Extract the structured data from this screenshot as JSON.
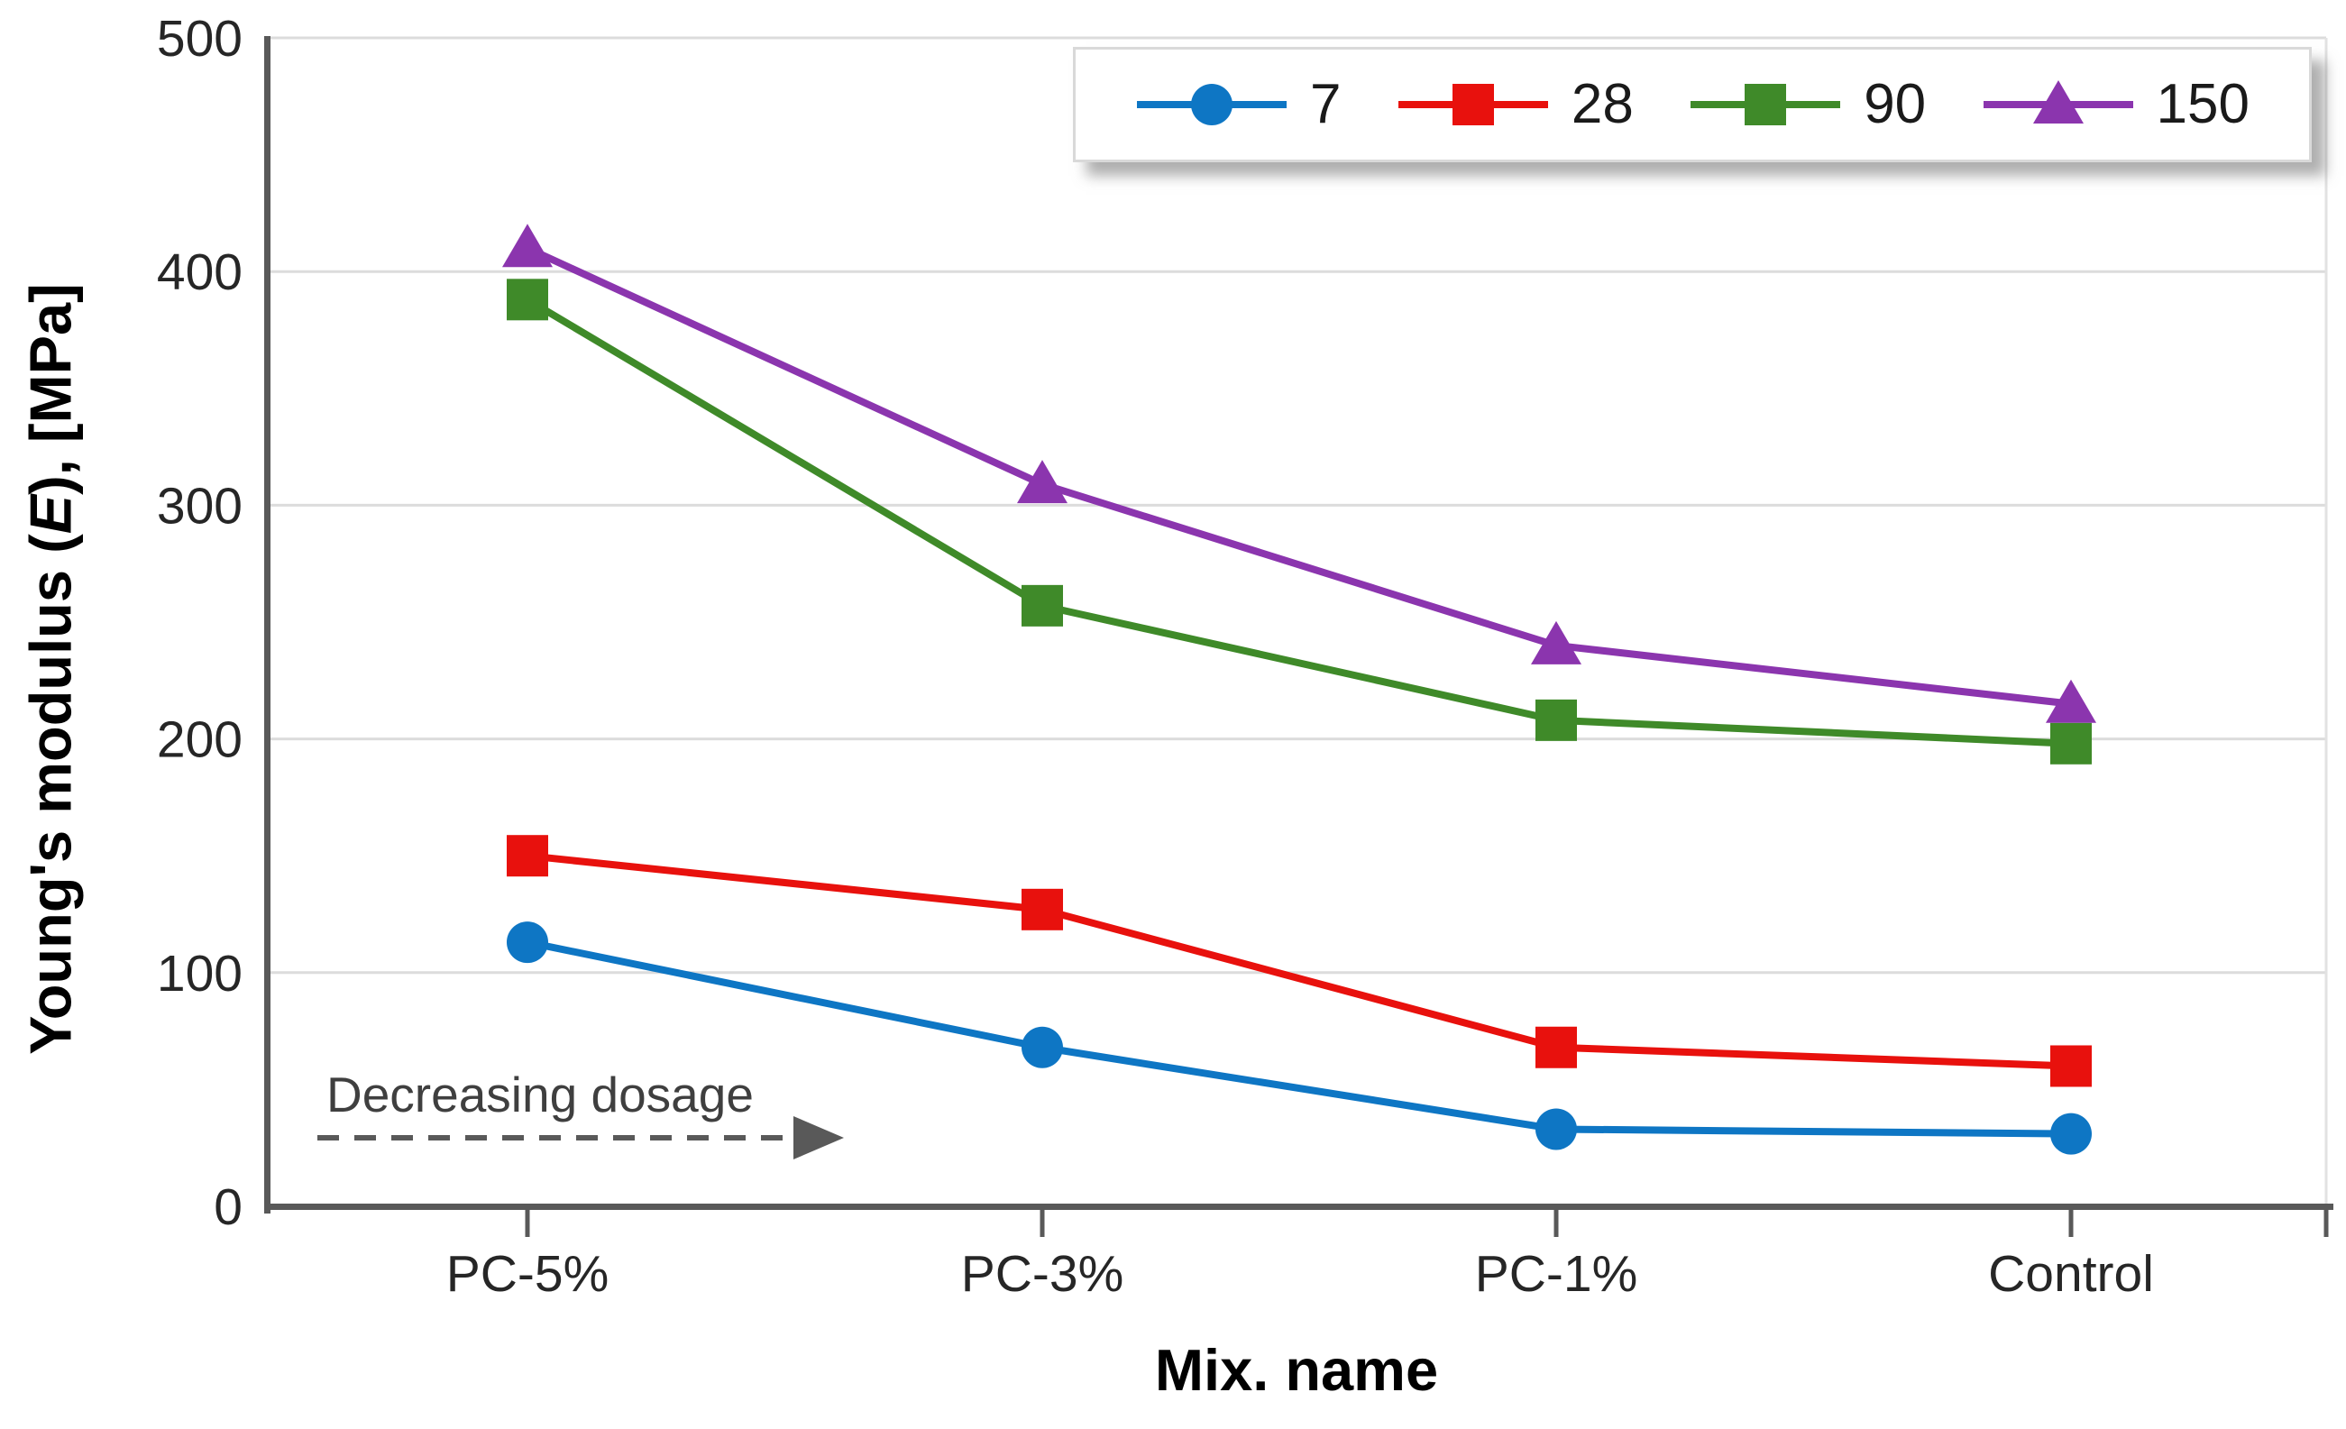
{
  "chart_data": {
    "type": "line",
    "title": "",
    "xlabel": "Mix. name",
    "ylabel": "Young's modulus (E), [MPa]",
    "ylabel_parts": {
      "pre": "Young's modulus (",
      "italic": "E",
      "post": "), [MPa]"
    },
    "categories": [
      "PC-5%",
      "PC-3%",
      "PC-1%",
      "Control"
    ],
    "y_ticks": [
      0,
      100,
      200,
      300,
      400,
      500
    ],
    "ylim": [
      0,
      500
    ],
    "grid": "horizontal",
    "legend_position": "top-right",
    "series": [
      {
        "name": "7",
        "marker": "circle",
        "color": "#0e76c4",
        "values": [
          113,
          68,
          33,
          31
        ]
      },
      {
        "name": "28",
        "marker": "square",
        "color": "#e8110d",
        "values": [
          150,
          127,
          68,
          60
        ]
      },
      {
        "name": "90",
        "marker": "square",
        "color": "#3f8a29",
        "values": [
          388,
          257,
          208,
          198
        ]
      },
      {
        "name": "150",
        "marker": "triangle",
        "color": "#8b35ae",
        "values": [
          410,
          309,
          240,
          215
        ]
      }
    ],
    "annotation": {
      "text": "Decreasing dosage",
      "arrow": "dashed-right"
    },
    "colors": {
      "axis": "#595959",
      "grid": "#dcdcdc",
      "right_spine": "#e2e2e2",
      "tick_text": "#262626",
      "annotation_text": "#3f3f3f",
      "annotation_arrow": "#595959",
      "legend_border": "#d9d9d9"
    }
  }
}
